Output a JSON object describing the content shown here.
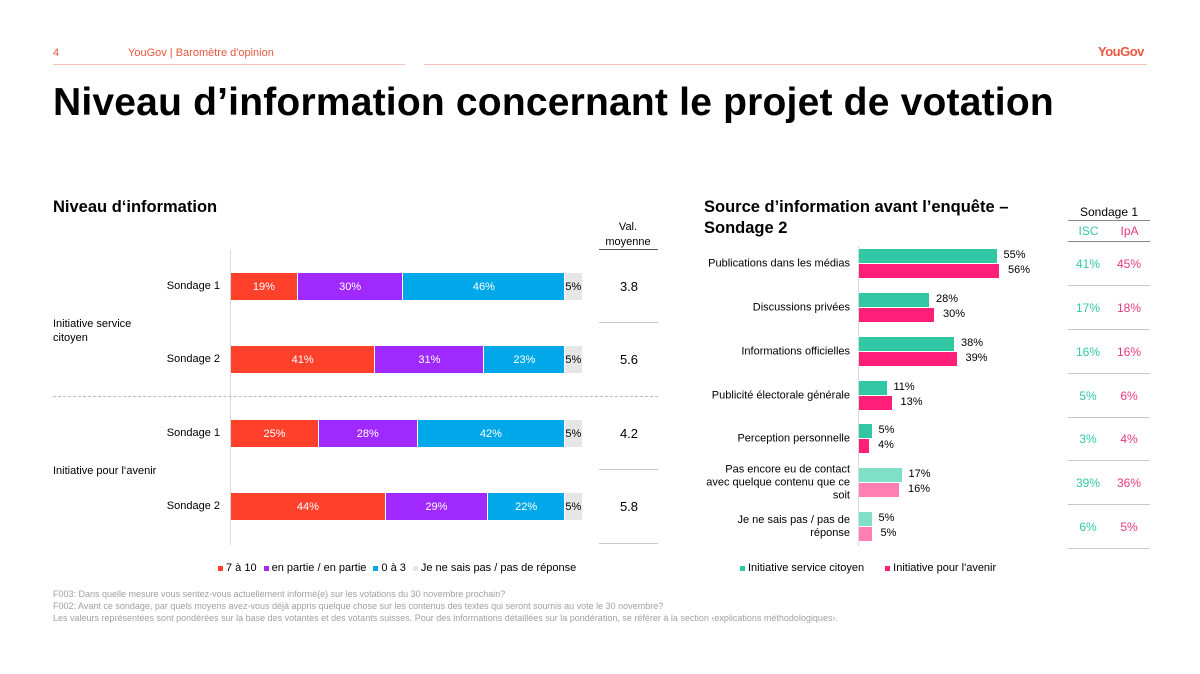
{
  "header": {
    "page_number": "4",
    "breadcrumb": "YouGov | Baromètre d'opinion",
    "logo": "YouGov"
  },
  "title": "Niveau d’information concernant le projet de votation",
  "colors": {
    "accent": "#e8573e",
    "red": "#ff412c",
    "purple": "#9f29ff",
    "blue": "#00a8e9",
    "gray": "#e6e6e6",
    "teal": "#31c7a5",
    "pink": "#ff1e78",
    "teal_light": "#7fdfc7",
    "pink_light": "#ff80b0"
  },
  "chart_data": [
    {
      "type": "bar",
      "orientation": "horizontal-stacked",
      "title": "Niveau d‘information",
      "mean_header": "Val. moyenne",
      "legend": [
        "7 à 10",
        "en partie / en partie",
        "0 à 3",
        "Je ne sais pas / pas de réponse"
      ],
      "legend_placement": "bottom",
      "groups": [
        {
          "label": "Initiative service citoyen",
          "rows": [
            {
              "label": "Sondage 1",
              "values": [
                19,
                30,
                46,
                5
              ],
              "labels": [
                "19%",
                "30%",
                "46%",
                "5%"
              ],
              "mean": "3.8"
            },
            {
              "label": "Sondage 2",
              "values": [
                41,
                31,
                23,
                5
              ],
              "labels": [
                "41%",
                "31%",
                "23%",
                "5%"
              ],
              "mean": "5.6"
            }
          ]
        },
        {
          "label": "Initiative pour l‘avenir",
          "rows": [
            {
              "label": "Sondage 1",
              "values": [
                25,
                28,
                42,
                5
              ],
              "labels": [
                "25%",
                "28%",
                "42%",
                "5%"
              ],
              "mean": "4.2"
            },
            {
              "label": "Sondage 2",
              "values": [
                44,
                29,
                22,
                5
              ],
              "labels": [
                "44%",
                "29%",
                "22%",
                "5%"
              ],
              "mean": "5.8"
            }
          ]
        }
      ]
    },
    {
      "type": "bar",
      "orientation": "horizontal-grouped",
      "title": "Source d’information avant l’enquête – Sondage 2",
      "categories": [
        "Publications dans les médias",
        "Discussions privées",
        "Informations officielles",
        "Publicité électorale générale",
        "Perception personnelle",
        "Pas encore eu de contact avec quelque contenu que ce soit",
        "Je ne sais pas / pas de réponse"
      ],
      "series": [
        {
          "name": "Initiative service citoyen",
          "values": [
            55,
            28,
            38,
            11,
            5,
            17,
            5
          ]
        },
        {
          "name": "Initiative pour l'avenir",
          "values": [
            56,
            30,
            39,
            13,
            4,
            16,
            5
          ]
        }
      ],
      "legend_placement": "bottom",
      "xlim": [
        0,
        100
      ]
    },
    {
      "type": "table",
      "title": "Sondage 1",
      "columns": [
        "ISC",
        "IpA"
      ],
      "rows": [
        [
          "41%",
          "45%"
        ],
        [
          "17%",
          "18%"
        ],
        [
          "16%",
          "16%"
        ],
        [
          "5%",
          "6%"
        ],
        [
          "3%",
          "4%"
        ],
        [
          "39%",
          "36%"
        ],
        [
          "6%",
          "5%"
        ]
      ]
    }
  ],
  "footnotes": [
    "F003: Dans quelle mesure vous sentez-vous actuellement informé(e) sur les votations du 30 novembre prochain?",
    "F002: Avant ce sondage, par quels moyens avez-vous déjà appris quelque chose sur les contenus des textes qui seront soumis au vote le 30 novembre?",
    "Les valeurs représentées sont pondérées sur la base des votantes et des votants suisses. Pour des informations détaillées sur la pondération, se référer à la section ‹explications méthodologiques›."
  ]
}
